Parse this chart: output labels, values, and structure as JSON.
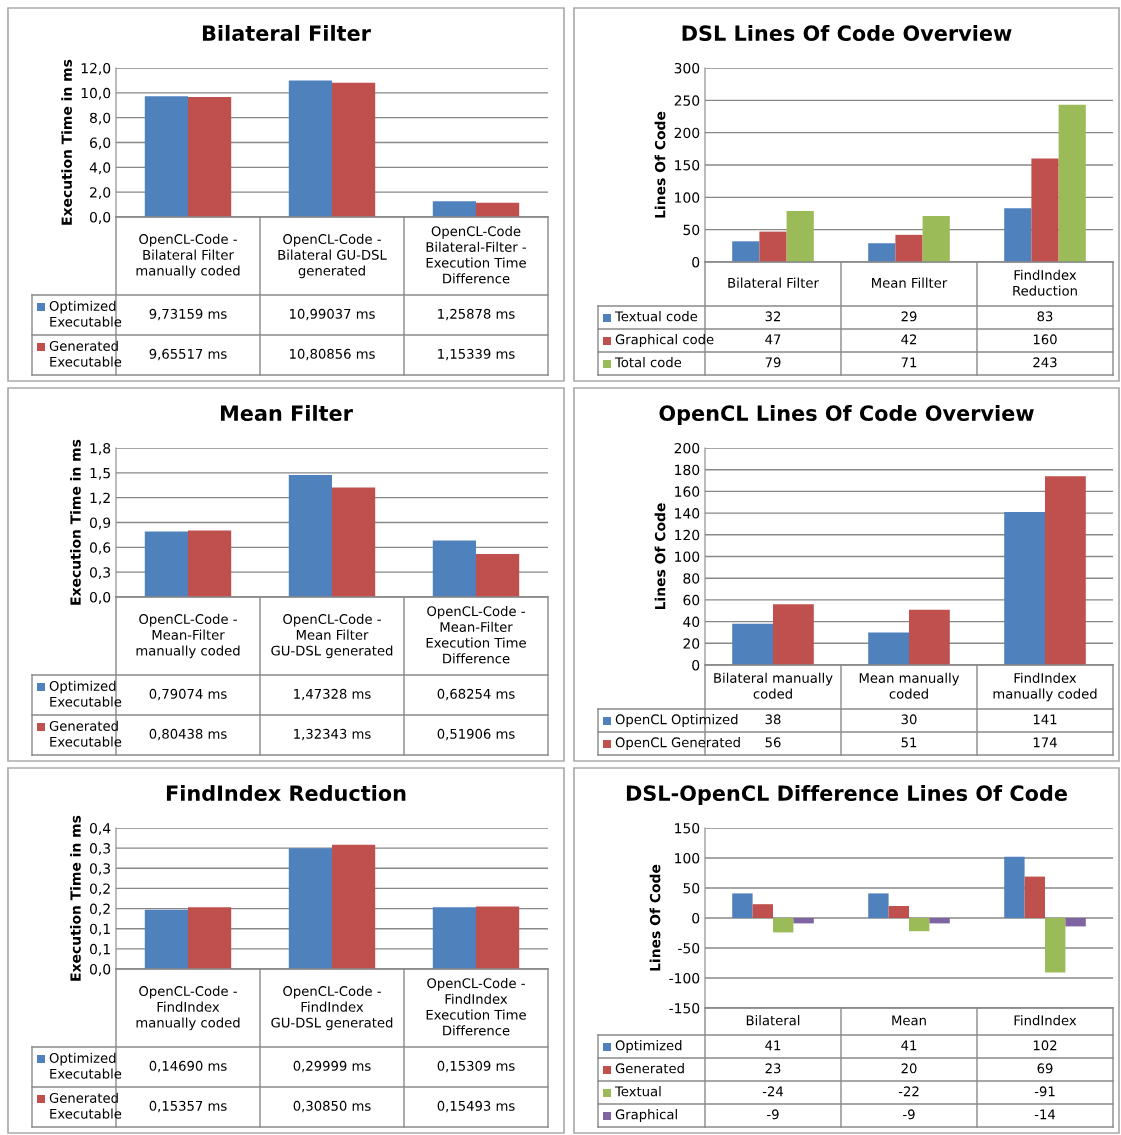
{
  "chart_data": [
    {
      "type": "bar",
      "title": "Bilateral Filter",
      "ylabel": "Execution Time in ms",
      "grid": "y",
      "legend": "bottom",
      "categories": [
        "OpenCL-Code -\nBilateral Filter\nmanually coded",
        "OpenCL-Code -\nBilateral GU-DSL\ngenerated",
        "OpenCL-Code\nBilateral-Filter -\nExecution Time\nDifference"
      ],
      "ylim": [
        0,
        12
      ],
      "yticks": [
        {
          "value": 0,
          "label": "0,0"
        },
        {
          "value": 2,
          "label": "2,0"
        },
        {
          "value": 4,
          "label": "4,0"
        },
        {
          "value": 6,
          "label": "6,0"
        },
        {
          "value": 8,
          "label": "8,0"
        },
        {
          "value": 10,
          "label": "10,0"
        },
        {
          "value": 12,
          "label": "12,0"
        }
      ],
      "series": [
        {
          "name": "Optimized\nExecutable",
          "color": "#4f81bd",
          "values": [
            9.73159,
            10.99037,
            1.25878
          ],
          "value_labels": [
            "9,73159 ms",
            "10,99037 ms",
            "1,25878 ms"
          ]
        },
        {
          "name": "Generated\nExecutable",
          "color": "#c0504d",
          "values": [
            9.65517,
            10.80856,
            1.15339
          ],
          "value_labels": [
            "9,65517 ms",
            "10,80856 ms",
            "1,15339 ms"
          ]
        }
      ]
    },
    {
      "type": "bar",
      "title": "DSL Lines Of Code Overview",
      "ylabel": "Lines Of Code",
      "grid": "y",
      "legend": "bottom",
      "data_labels": true,
      "categories": [
        "Bilateral Filter",
        "Mean Fillter",
        "FindIndex\nReduction"
      ],
      "ylim": [
        0,
        300
      ],
      "yticks": [
        0,
        50,
        100,
        150,
        200,
        250,
        300
      ],
      "series": [
        {
          "name": "Textual code",
          "color": "#4f81bd",
          "values": [
            32,
            29,
            83
          ]
        },
        {
          "name": "Graphical code",
          "color": "#c0504d",
          "values": [
            47,
            42,
            160
          ]
        },
        {
          "name": "Total code",
          "color": "#9bbb59",
          "values": [
            79,
            71,
            243
          ]
        }
      ]
    },
    {
      "type": "bar",
      "title": "Mean Filter",
      "ylabel": "Execution Time in ms",
      "grid": "y",
      "legend": "bottom",
      "categories": [
        "OpenCL-Code -\nMean-Filter\nmanually coded",
        "OpenCL-Code -\nMean Filter\nGU-DSL generated",
        "OpenCL-Code -\nMean-Filter\nExecution Time\nDifference"
      ],
      "ylim": [
        0,
        1.8
      ],
      "yticks": [
        {
          "value": 0,
          "label": "0,0"
        },
        {
          "value": 0.3,
          "label": "0,3"
        },
        {
          "value": 0.6,
          "label": "0,6"
        },
        {
          "value": 0.9,
          "label": "0,9"
        },
        {
          "value": 1.2,
          "label": "1,2"
        },
        {
          "value": 1.5,
          "label": "1,5"
        },
        {
          "value": 1.8,
          "label": "1,8"
        }
      ],
      "series": [
        {
          "name": "Optimized\nExecutable",
          "color": "#4f81bd",
          "values": [
            0.79074,
            1.47328,
            0.68254
          ],
          "value_labels": [
            "0,79074 ms",
            "1,47328 ms",
            "0,68254 ms"
          ]
        },
        {
          "name": "Generated\nExecutable",
          "color": "#c0504d",
          "values": [
            0.80438,
            1.32343,
            0.51906
          ],
          "value_labels": [
            "0,80438 ms",
            "1,32343 ms",
            "0,51906 ms"
          ]
        }
      ]
    },
    {
      "type": "bar",
      "title": "OpenCL Lines Of Code Overview",
      "ylabel": "Lines Of Code",
      "grid": "y",
      "legend": "bottom",
      "data_labels": true,
      "categories": [
        "Bilateral manually\ncoded",
        "Mean manually\ncoded",
        "FindIndex\nmanually coded"
      ],
      "ylim": [
        0,
        200
      ],
      "yticks": [
        0,
        20,
        40,
        60,
        80,
        100,
        120,
        140,
        160,
        180,
        200
      ],
      "series": [
        {
          "name": "OpenCL Optimized",
          "color": "#4f81bd",
          "values": [
            38,
            30,
            141
          ]
        },
        {
          "name": "OpenCL Generated",
          "color": "#c0504d",
          "values": [
            56,
            51,
            174
          ]
        }
      ]
    },
    {
      "type": "bar",
      "title": "FindIndex Reduction",
      "ylabel": "Execution Time in ms",
      "grid": "y",
      "legend": "bottom",
      "categories": [
        "OpenCL-Code -\nFindIndex\nmanually coded",
        "OpenCL-Code -\nFindIndex\nGU-DSL generated",
        "OpenCL-Code -\nFindIndex\nExecution Time\nDifference"
      ],
      "ylim": [
        0,
        0.35
      ],
      "yticks": [
        {
          "value": 0,
          "label": "0,0"
        },
        {
          "value": 0.05,
          "label": "0,1"
        },
        {
          "value": 0.1,
          "label": "0,1"
        },
        {
          "value": 0.15,
          "label": "0,2"
        },
        {
          "value": 0.2,
          "label": "0,2"
        },
        {
          "value": 0.25,
          "label": "0,3"
        },
        {
          "value": 0.3,
          "label": "0,3"
        },
        {
          "value": 0.35,
          "label": "0,4"
        }
      ],
      "series": [
        {
          "name": "Optimized\nExecutable",
          "color": "#4f81bd",
          "values": [
            0.1469,
            0.29999,
            0.15309
          ],
          "value_labels": [
            "0,14690 ms",
            "0,29999 ms",
            "0,15309 ms"
          ]
        },
        {
          "name": "Generated\nExecutable",
          "color": "#c0504d",
          "values": [
            0.15357,
            0.3085,
            0.15493
          ],
          "value_labels": [
            "0,15357 ms",
            "0,30850 ms",
            "0,15493 ms"
          ]
        }
      ]
    },
    {
      "type": "bar",
      "title": "DSL-OpenCL Difference Lines Of Code",
      "ylabel": "Lines Of Code",
      "grid": "y",
      "legend": "bottom",
      "data_labels": true,
      "categories": [
        "Bilateral",
        "Mean",
        "FindIndex"
      ],
      "ylim": [
        -150,
        150
      ],
      "yticks": [
        -150,
        -100,
        -50,
        0,
        50,
        100,
        150
      ],
      "series": [
        {
          "name": "Optimized",
          "color": "#4f81bd",
          "values": [
            41,
            41,
            102
          ]
        },
        {
          "name": "Generated",
          "color": "#c0504d",
          "values": [
            23,
            20,
            69
          ]
        },
        {
          "name": "Textual",
          "color": "#9bbb59",
          "values": [
            -24,
            -22,
            -91
          ]
        },
        {
          "name": "Graphical",
          "color": "#8064a2",
          "values": [
            -9,
            -9,
            -14
          ]
        }
      ]
    }
  ]
}
